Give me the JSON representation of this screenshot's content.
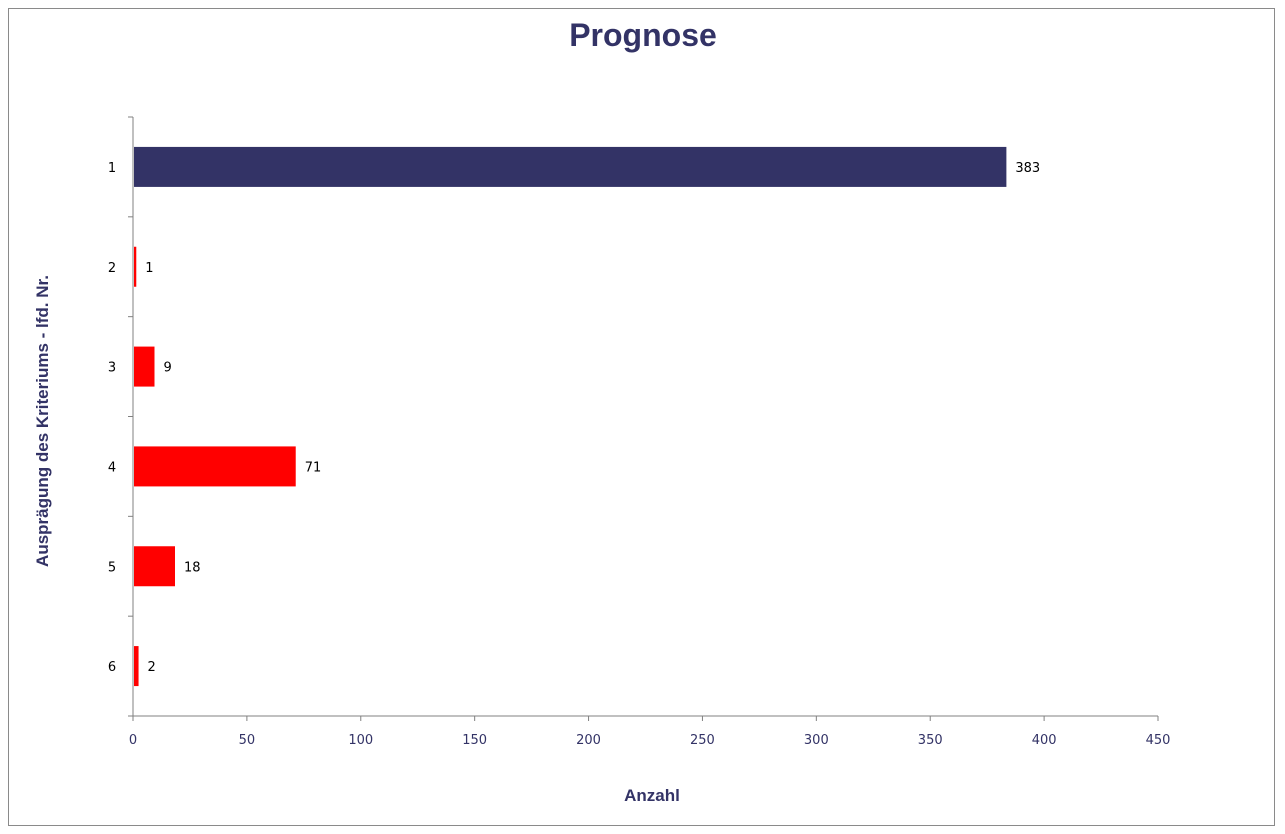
{
  "chart_data": {
    "type": "bar",
    "orientation": "horizontal",
    "title": "Prognose",
    "xlabel": "Anzahl",
    "ylabel": "Ausprägung des Kriteriums - lfd. Nr.",
    "categories": [
      "1",
      "2",
      "3",
      "4",
      "5",
      "6"
    ],
    "values": [
      383,
      1,
      9,
      71,
      18,
      2
    ],
    "data_labels": [
      "383",
      "1",
      "9",
      "71",
      "18",
      "2"
    ],
    "bar_colors": [
      "#333366",
      "#ff0000",
      "#ff0000",
      "#ff0000",
      "#ff0000",
      "#ff0000"
    ],
    "xlim": [
      0,
      450
    ],
    "x_ticks": [
      0,
      50,
      100,
      150,
      200,
      250,
      300,
      350,
      400,
      450
    ],
    "grid": false,
    "legend": "none"
  },
  "colors": {
    "title": "#333366",
    "axis_text": "#333366",
    "axis_line": "#808080"
  }
}
